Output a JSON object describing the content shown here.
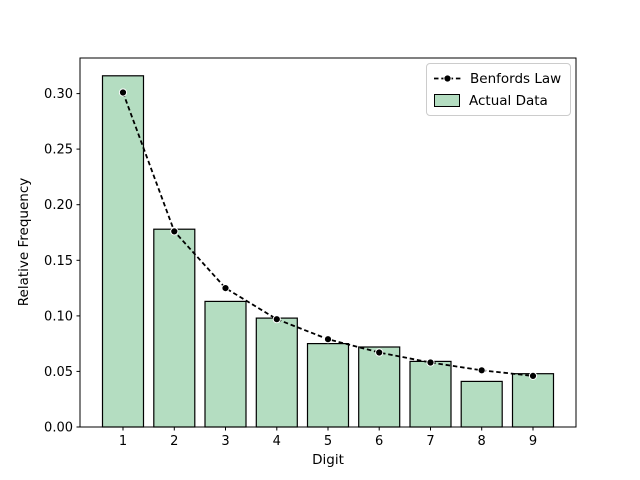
{
  "chart_data": {
    "type": "bar",
    "title": "",
    "xlabel": "Digit",
    "ylabel": "Relative Frequency",
    "categories": [
      1,
      2,
      3,
      4,
      5,
      6,
      7,
      8,
      9
    ],
    "series": [
      {
        "name": "Benfords Law",
        "type": "line",
        "style": "dashed",
        "marker": "circle",
        "color": "#000000",
        "marker_edge": "#ffffff",
        "values": [
          0.301,
          0.176,
          0.125,
          0.097,
          0.079,
          0.067,
          0.058,
          0.051,
          0.046
        ]
      },
      {
        "name": "Actual Data",
        "type": "bar",
        "fill": "#b4ddc1",
        "edge": "#000000",
        "values": [
          0.316,
          0.178,
          0.113,
          0.098,
          0.075,
          0.072,
          0.059,
          0.041,
          0.048
        ]
      }
    ],
    "yticks": [
      0.0,
      0.05,
      0.1,
      0.15,
      0.2,
      0.25,
      0.3
    ],
    "ytick_labels": [
      "0.00",
      "0.05",
      "0.10",
      "0.15",
      "0.20",
      "0.25",
      "0.30"
    ],
    "xtick_labels": [
      "1",
      "2",
      "3",
      "4",
      "5",
      "6",
      "7",
      "8",
      "9"
    ],
    "ylim": [
      0,
      0.332
    ],
    "xlim": [
      0.16,
      9.84
    ],
    "bar_width": 0.8,
    "grid": false,
    "legend": {
      "position": "upper right",
      "entries": [
        "Benfords Law",
        "Actual Data"
      ],
      "border_color": "#cccccc"
    },
    "colors": {
      "bar_fill": "#b4ddc1",
      "bar_edge": "#000000",
      "line": "#000000",
      "background": "#ffffff"
    }
  }
}
